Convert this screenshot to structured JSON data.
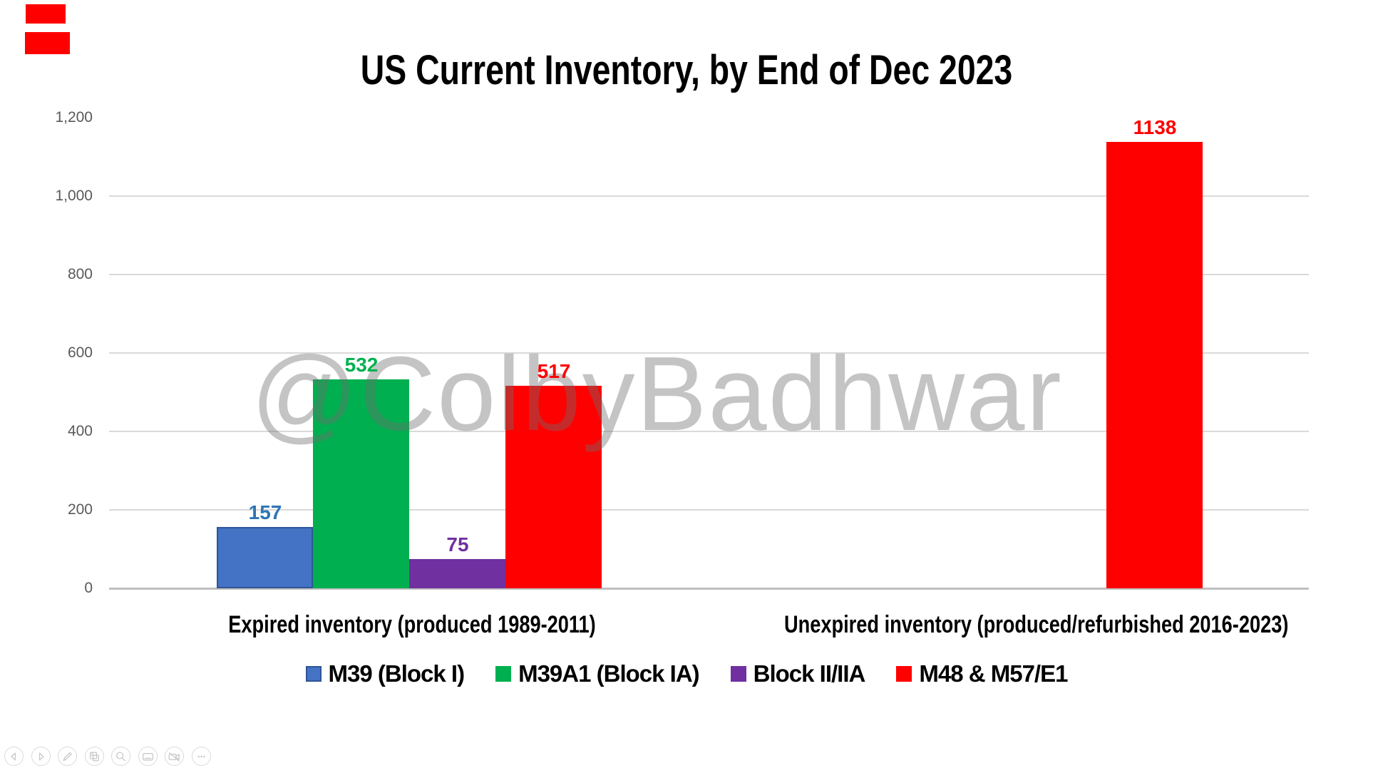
{
  "screen_overlay": {
    "recording_marks": [
      "red-block-1",
      "red-block-2"
    ],
    "mark_color": "#fe0000"
  },
  "watermark": "@ColbyBadhwar",
  "chart_data": {
    "type": "bar",
    "title": "US Current Inventory, by End of Dec 2023",
    "categories": [
      "Expired inventory (produced 1989-2011)",
      "Unexpired inventory (produced/refurbished 2016-2023)"
    ],
    "series": [
      {
        "name": "M39 (Block I)",
        "color": "#4472c4",
        "border": "#2f5597",
        "label_color": "#2e75b6",
        "values": [
          157,
          null
        ]
      },
      {
        "name": "M39A1 (Block IA)",
        "color": "#00b050",
        "border": null,
        "label_color": "#00b050",
        "values": [
          532,
          null
        ]
      },
      {
        "name": "Block II/IIA",
        "color": "#7030a0",
        "border": null,
        "label_color": "#7030a0",
        "values": [
          75,
          null
        ]
      },
      {
        "name": "M48 & M57/E1",
        "color": "#ff0000",
        "border": null,
        "label_color": "#ff0000",
        "values": [
          517,
          1138
        ]
      }
    ],
    "ylim": [
      0,
      1200
    ],
    "yticks": [
      {
        "value": 0,
        "label": "0"
      },
      {
        "value": 200,
        "label": "200"
      },
      {
        "value": 400,
        "label": "400"
      },
      {
        "value": 600,
        "label": "600"
      },
      {
        "value": 800,
        "label": "800"
      },
      {
        "value": 1000,
        "label": "1,000"
      },
      {
        "value": 1200,
        "label": "1,200"
      }
    ],
    "grid": "horizontal gridlines at 200-1000, baseline axis at 0, none at 1200",
    "grid_color": "#d9d9d9",
    "axis_color": "#bfbfbf",
    "tick_label_color": "#595959",
    "legend_position": "bottom"
  },
  "toolbar": {
    "icons": [
      {
        "name": "previous-slide"
      },
      {
        "name": "next-slide"
      },
      {
        "name": "pen"
      },
      {
        "name": "see-all-slides"
      },
      {
        "name": "zoom"
      },
      {
        "name": "captions"
      },
      {
        "name": "camera-off"
      },
      {
        "name": "more-options"
      }
    ]
  }
}
